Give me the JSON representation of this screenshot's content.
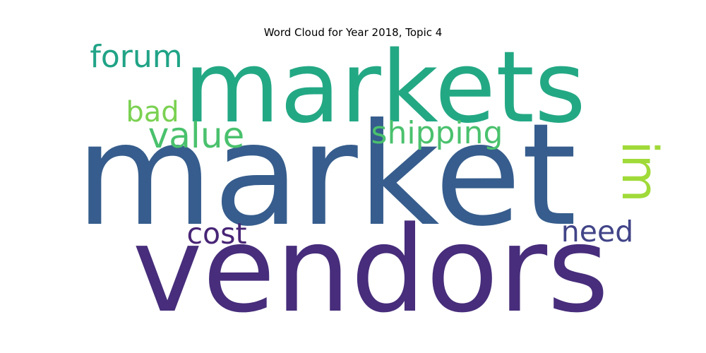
{
  "chart_data": {
    "type": "wordcloud",
    "title": "Word Cloud for Year 2018, Topic 4",
    "grid": false,
    "axes_visible": false,
    "words": [
      {
        "text": "market",
        "weight": 1.0,
        "color": "#365d8d",
        "orientation": "horizontal"
      },
      {
        "text": "vendors",
        "weight": 0.92,
        "color": "#472d7b",
        "orientation": "horizontal"
      },
      {
        "text": "markets",
        "weight": 0.78,
        "color": "#23a884",
        "orientation": "horizontal"
      },
      {
        "text": "im",
        "weight": 0.36,
        "color": "#a0da39",
        "orientation": "vertical"
      },
      {
        "text": "value",
        "weight": 0.29,
        "color": "#4ac16d",
        "orientation": "horizontal"
      },
      {
        "text": "forum",
        "weight": 0.25,
        "color": "#20a386",
        "orientation": "horizontal"
      },
      {
        "text": "shipping",
        "weight": 0.25,
        "color": "#4ac16d",
        "orientation": "horizontal"
      },
      {
        "text": "cost",
        "weight": 0.24,
        "color": "#482576",
        "orientation": "horizontal"
      },
      {
        "text": "need",
        "weight": 0.24,
        "color": "#414487",
        "orientation": "horizontal"
      },
      {
        "text": "bad",
        "weight": 0.23,
        "color": "#7ad151",
        "orientation": "horizontal"
      }
    ]
  }
}
